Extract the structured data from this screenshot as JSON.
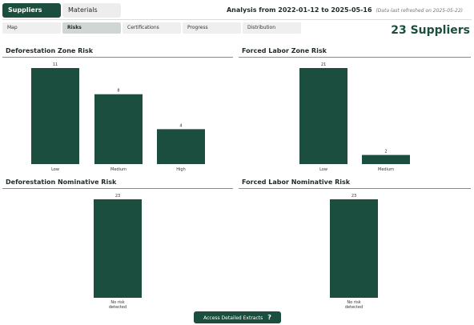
{
  "top_tabs": {
    "suppliers": "Suppliers",
    "materials": "Materials"
  },
  "analysis": {
    "label": "Analysis from 2022-01-12 to 2025-05-16",
    "note": "(Data last refreshed on 2025-05-22)"
  },
  "sub_tabs": [
    "Map",
    "Risks",
    "Certifications",
    "Progress",
    "Distribution"
  ],
  "active_sub_tab": "Risks",
  "supplier_count": "23 Suppliers",
  "colors": {
    "accent": "#1b4e3e",
    "bar": "#1b4e3e"
  },
  "chart_data": [
    {
      "type": "bar",
      "title": "Deforestation Zone Risk",
      "categories": [
        "Low",
        "Medium",
        "High"
      ],
      "values": [
        11,
        8,
        4
      ]
    },
    {
      "type": "bar",
      "title": "Forced Labor Zone Risk",
      "categories": [
        "Low",
        "Medium"
      ],
      "values": [
        21,
        2
      ]
    },
    {
      "type": "bar",
      "title": "Deforestation Nominative Risk",
      "categories": [
        "No risk detected"
      ],
      "values": [
        23
      ]
    },
    {
      "type": "bar",
      "title": "Forced Labor Nominative Risk",
      "categories": [
        "No risk detected"
      ],
      "values": [
        23
      ]
    }
  ],
  "button": {
    "label": "Access Detailed Extracts",
    "icon": "question-icon",
    "icon_glyph": "?"
  }
}
